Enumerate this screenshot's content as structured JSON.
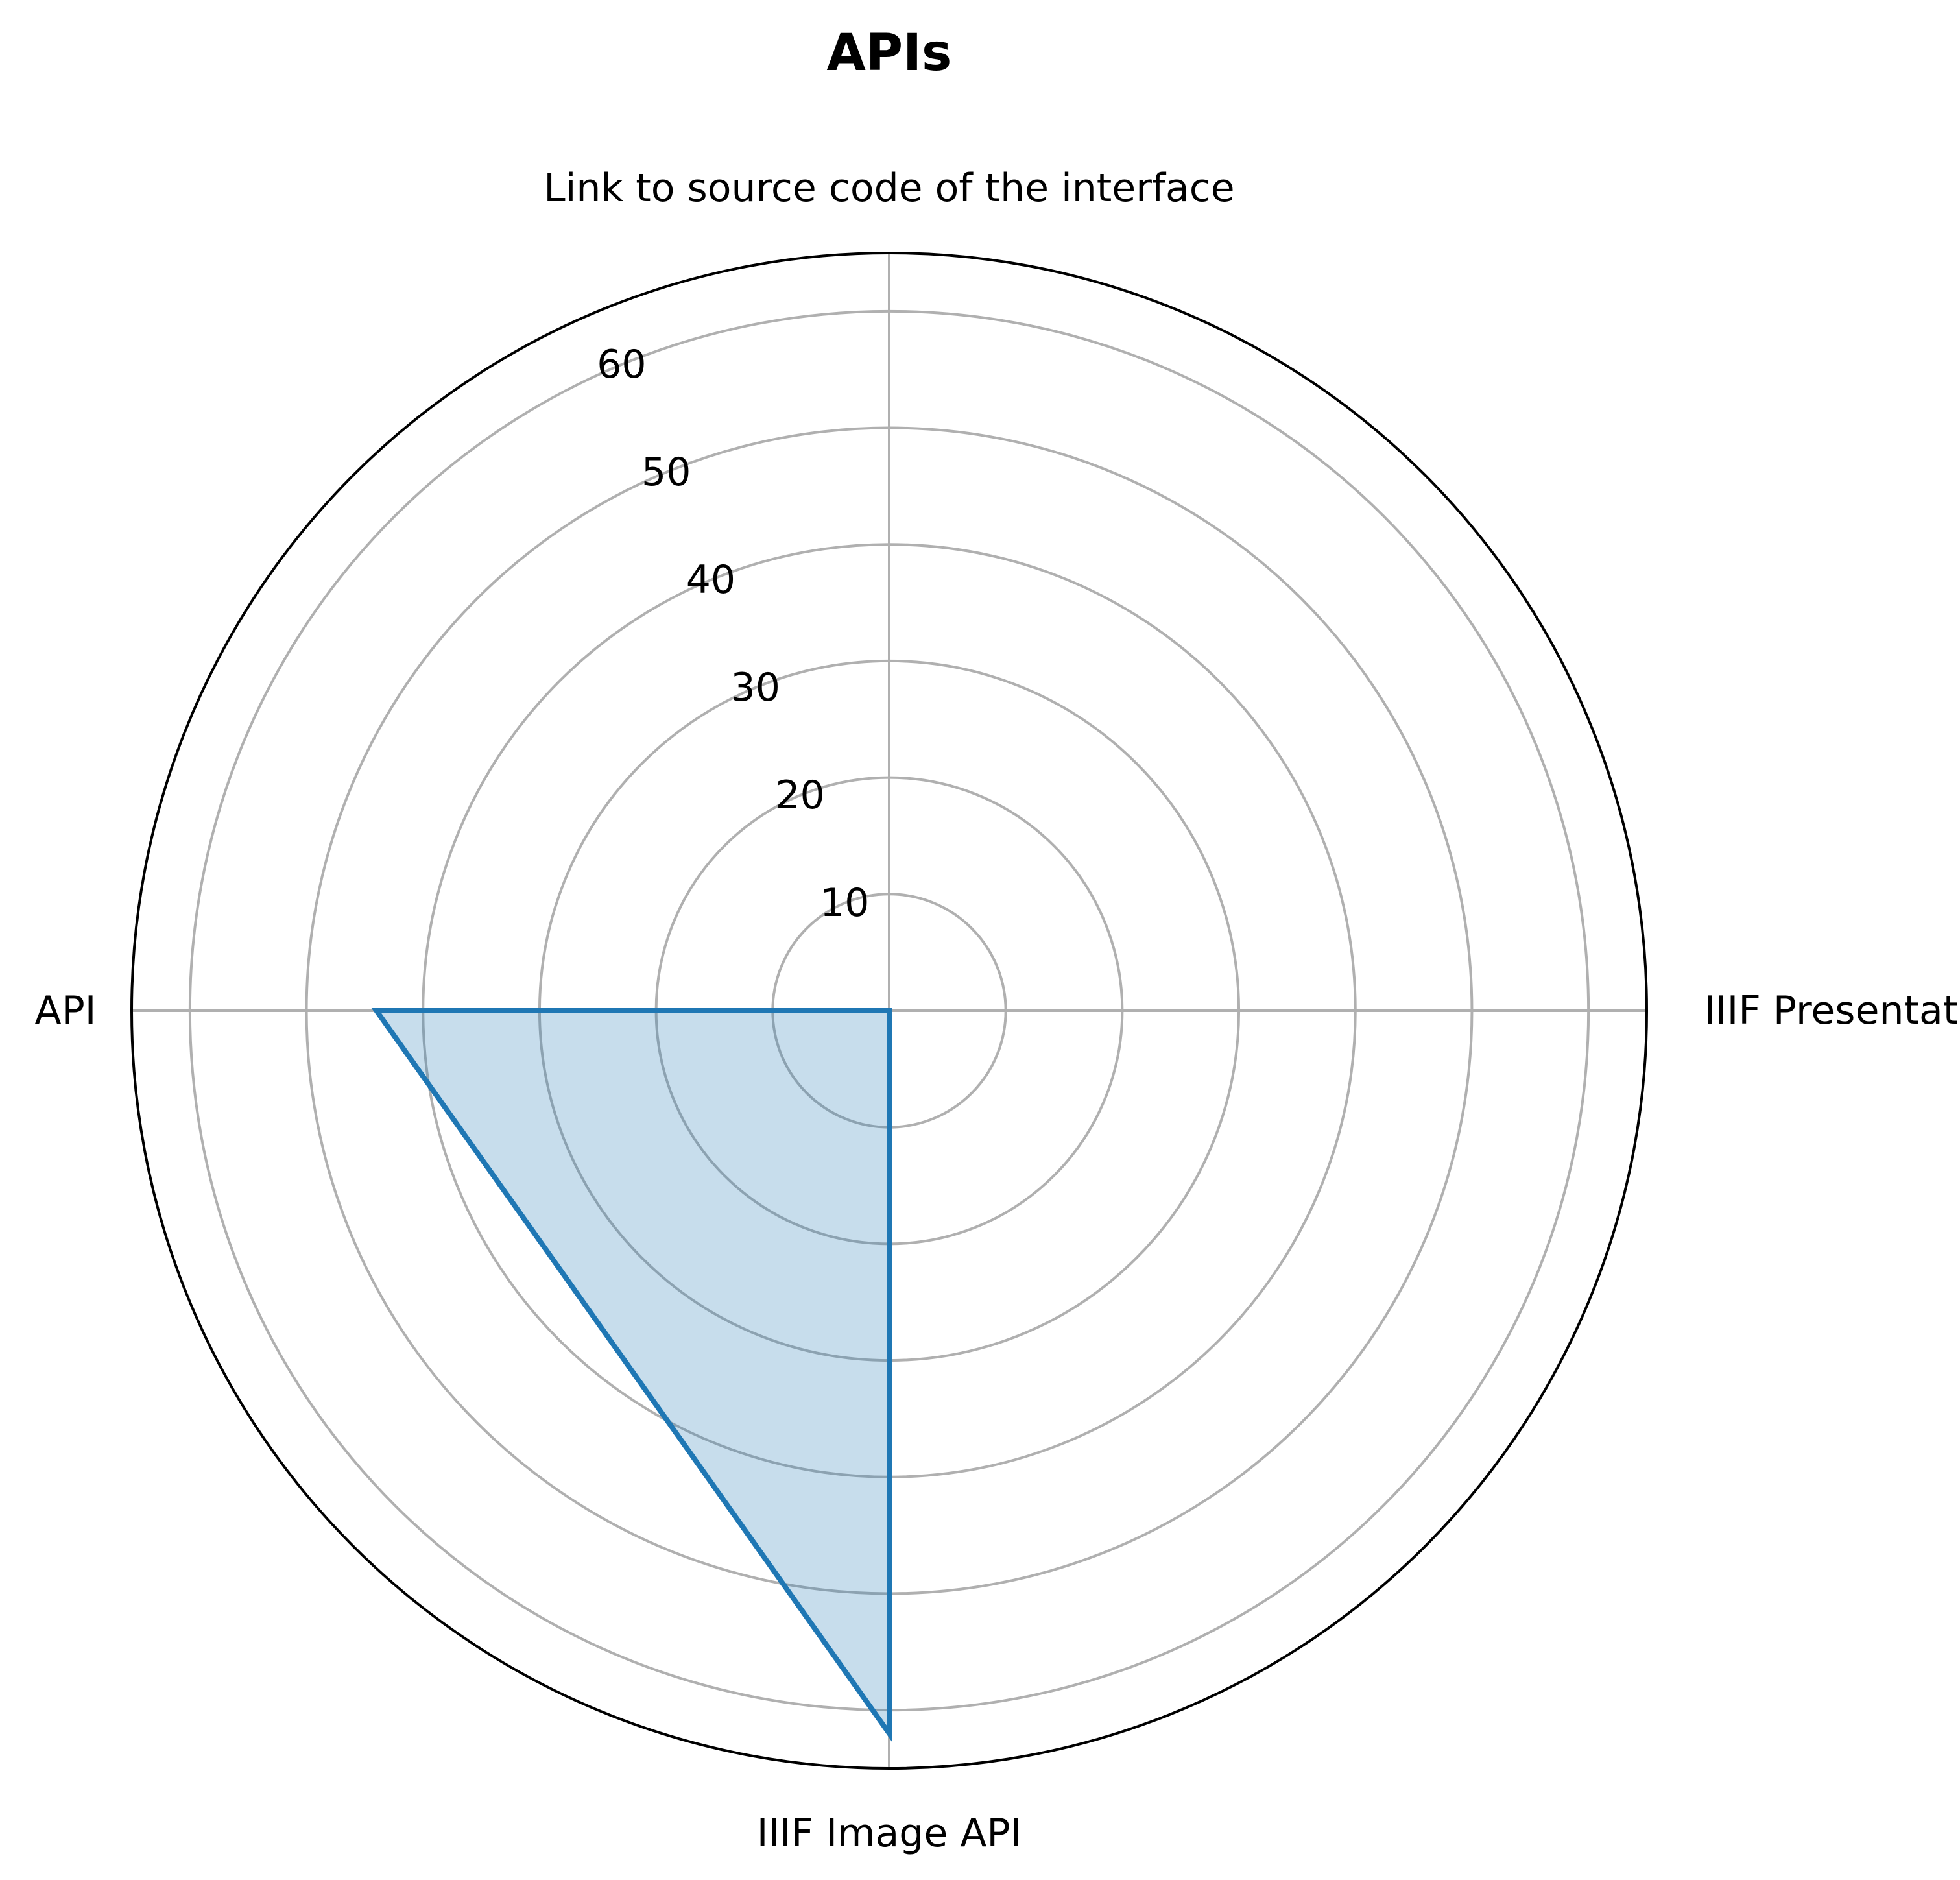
{
  "chart_data": {
    "type": "radar",
    "title": "APIs",
    "categories": [
      "Link to source code of the interface",
      "IIIF Presentation API",
      "IIIF Image API",
      "API"
    ],
    "series": [
      {
        "values": [
          0,
          0,
          62,
          44
        ],
        "color": "#1f77b4",
        "fill": "#1f77b4",
        "fill_opacity": 0.25
      }
    ],
    "rticks": [
      10,
      20,
      30,
      40,
      50,
      60
    ],
    "rlim": [
      0,
      65
    ],
    "grid": true,
    "grid_color": "#b0b0b0",
    "spine_color": "#000000"
  }
}
